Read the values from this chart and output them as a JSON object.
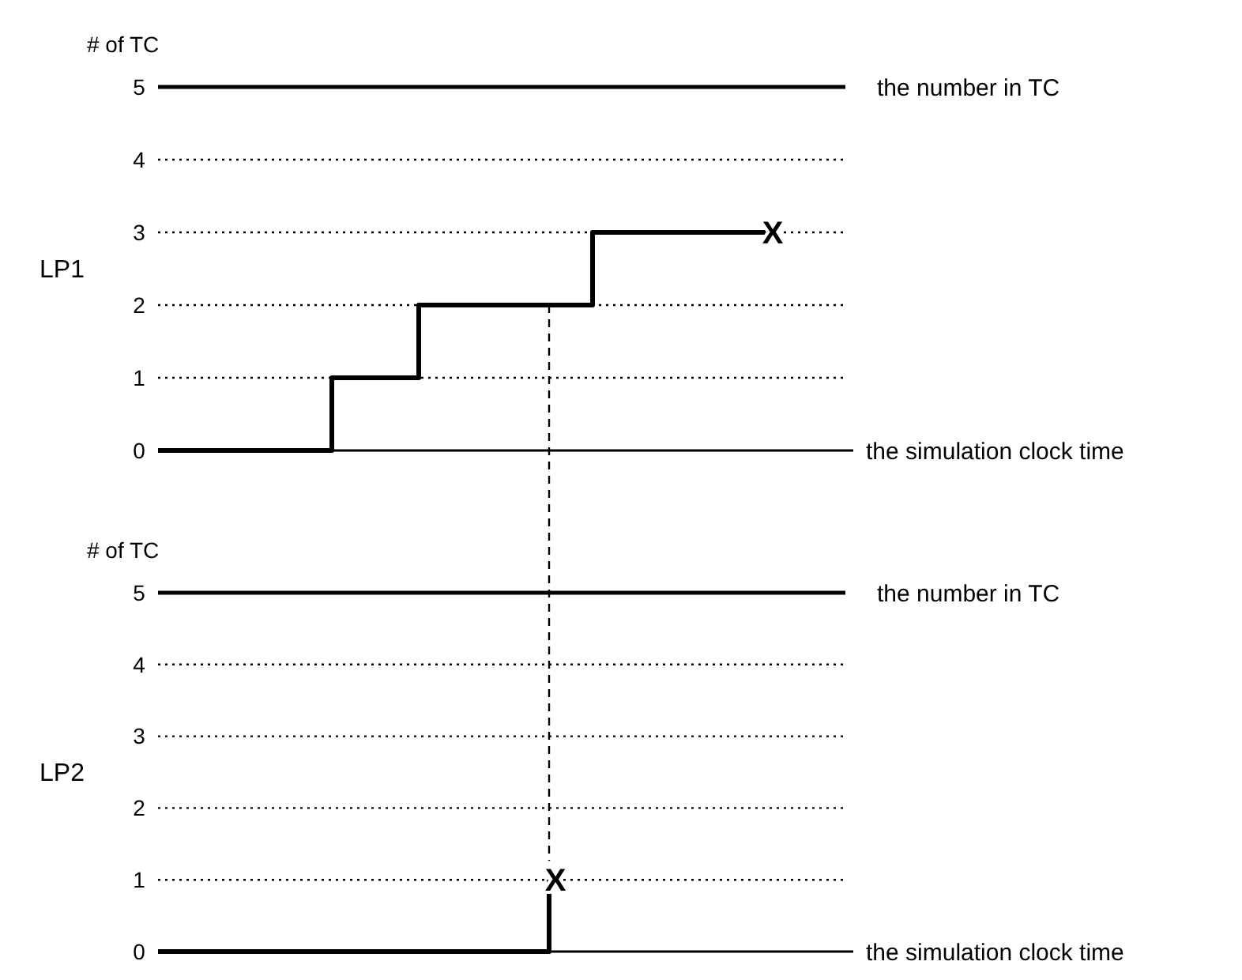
{
  "chart_data": [
    {
      "type": "step",
      "title": "LP1",
      "ylabel": "# of TC",
      "xlabel": "the simulation clock time",
      "categories": [
        null,
        null,
        null,
        null,
        null,
        null,
        null,
        null,
        null,
        null,
        null,
        null,
        null,
        null,
        null,
        null,
        null
      ],
      "values": [
        0,
        0,
        0,
        0,
        1,
        1,
        2,
        2,
        2,
        2,
        3,
        3,
        3,
        3,
        3,
        null,
        null
      ],
      "color": "#000000",
      "ylim": [
        0,
        5
      ],
      "yticks": [
        0,
        1,
        2,
        3,
        4,
        5
      ],
      "grid": "y",
      "ref_lines": [
        {
          "axis": "y",
          "value": 5,
          "label": "the number in TC"
        }
      ],
      "annotations": [
        {
          "text": "X",
          "y": 3
        }
      ]
    },
    {
      "type": "step",
      "title": "LP2",
      "ylabel": "# of TC",
      "xlabel": "the simulation clock time",
      "categories": [
        null,
        null,
        null,
        null,
        null,
        null,
        null,
        null,
        null,
        null,
        null,
        null,
        null,
        null,
        null,
        null,
        null
      ],
      "values": [
        0,
        0,
        0,
        0,
        0,
        0,
        0,
        0,
        0,
        1,
        null,
        null,
        null,
        null,
        null,
        null,
        null
      ],
      "color": "#000000",
      "ylim": [
        0,
        5
      ],
      "yticks": [
        0,
        1,
        2,
        3,
        4,
        5
      ],
      "grid": "y",
      "ref_lines": [
        {
          "axis": "y",
          "value": 5,
          "label": "the number in TC"
        }
      ],
      "annotations": [
        {
          "text": "X",
          "y": 1
        }
      ]
    }
  ]
}
